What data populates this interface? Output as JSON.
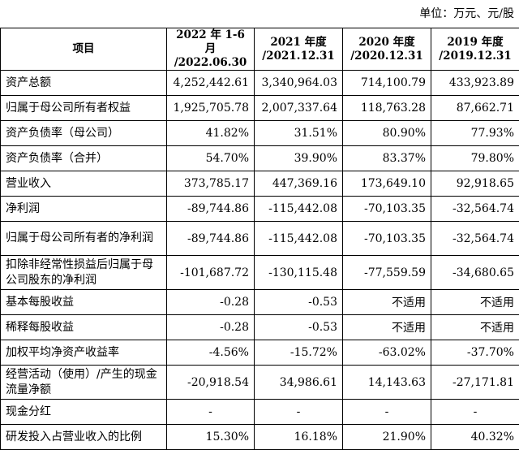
{
  "unit_note": "单位：万元、元/股",
  "headers": {
    "item": "项目",
    "col1_line1": "2022 年 1-6 月",
    "col1_line2": "/2022.06.30",
    "col2_line1": "2021 年度",
    "col2_line2": "/2021.12.31",
    "col3_line1": "2020 年度",
    "col3_line2": "/2020.12.31",
    "col4_line1": "2019 年度",
    "col4_line2": "/2019.12.31"
  },
  "rows": [
    {
      "label": "资产总额",
      "v": [
        "4,252,442.61",
        "3,340,964.03",
        "714,100.79",
        "433,923.89"
      ]
    },
    {
      "label": "归属于母公司所有者权益",
      "v": [
        "1,925,705.78",
        "2,007,337.64",
        "118,763.28",
        "87,662.71"
      ]
    },
    {
      "label": "资产负债率（母公司）",
      "v": [
        "41.82%",
        "31.51%",
        "80.90%",
        "77.93%"
      ]
    },
    {
      "label": "资产负债率（合并）",
      "v": [
        "54.70%",
        "39.90%",
        "83.37%",
        "79.80%"
      ]
    },
    {
      "label": "营业收入",
      "v": [
        "373,785.17",
        "447,369.16",
        "173,649.10",
        "92,918.65"
      ]
    },
    {
      "label": "净利润",
      "v": [
        "-89,744.86",
        "-115,442.08",
        "-70,103.35",
        "-32,564.74"
      ]
    },
    {
      "label": "归属于母公司所有者的净利润",
      "v": [
        "-89,744.86",
        "-115,442.08",
        "-70,103.35",
        "-32,564.74"
      ]
    },
    {
      "label": "扣除非经常性损益后归属于母公司股东的净利润",
      "v": [
        "-101,687.72",
        "-130,115.48",
        "-77,559.59",
        "-34,680.65"
      ]
    },
    {
      "label": "基本每股收益",
      "v": [
        "-0.28",
        "-0.53",
        "不适用",
        "不适用"
      ]
    },
    {
      "label": "稀释每股收益",
      "v": [
        "-0.28",
        "-0.53",
        "不适用",
        "不适用"
      ]
    },
    {
      "label": "加权平均净资产收益率",
      "v": [
        "-4.56%",
        "-15.72%",
        "-63.02%",
        "-37.70%"
      ]
    },
    {
      "label": "经营活动（使用）/产生的现金流量净额",
      "v": [
        "-20,918.54",
        "34,986.61",
        "14,143.63",
        "-27,171.81"
      ]
    },
    {
      "label": "现金分红",
      "v": [
        "-",
        "-",
        "-",
        "-"
      ]
    },
    {
      "label": "研发投入占营业收入的比例",
      "v": [
        "15.30%",
        "16.18%",
        "21.90%",
        "40.32%"
      ]
    }
  ]
}
